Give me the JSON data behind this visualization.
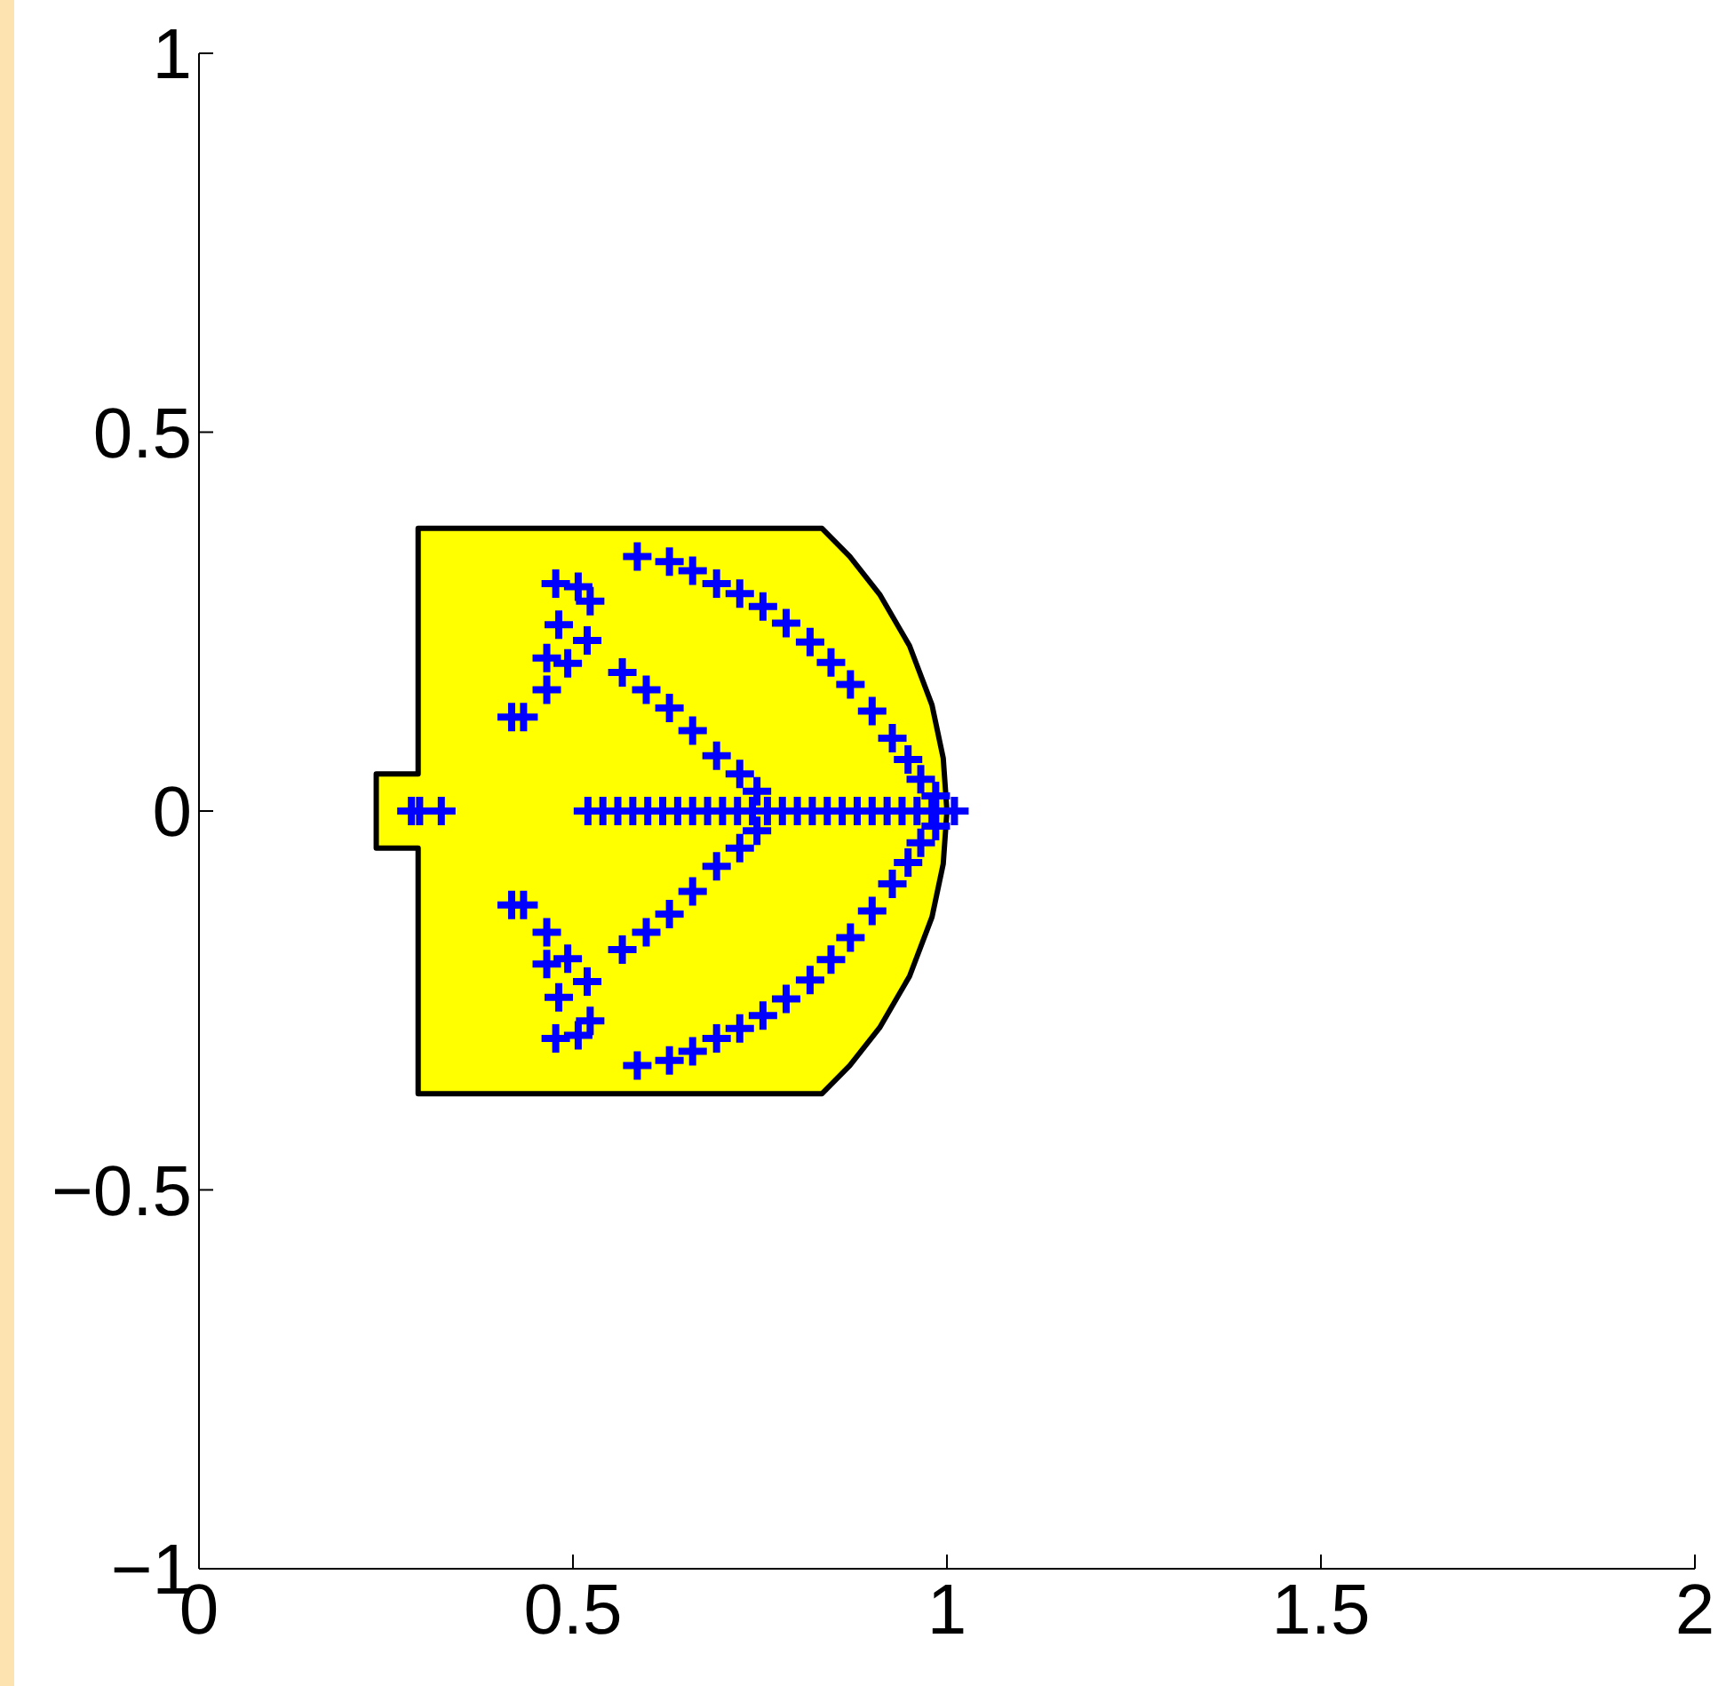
{
  "chart_data": {
    "type": "scatter",
    "xlim": [
      0,
      2
    ],
    "xticks": [
      0,
      0.5,
      1,
      1.5,
      2
    ],
    "ylim": [
      -1,
      1
    ],
    "yticks": [
      {
        "value": -1,
        "label": "−1"
      },
      {
        "value": -0.5,
        "label": "−0.5"
      },
      0,
      0.5,
      1
    ],
    "grid": false,
    "series": [
      {
        "type": "area",
        "color": "#ffff00",
        "x": [
          0.237,
          0.237,
          0.293,
          0.293,
          0.833,
          0.87,
          0.91,
          0.95,
          0.98,
          0.995,
          1.0
        ],
        "values": [
          0,
          0.049,
          0.049,
          0.373,
          0.373,
          0.336,
          0.286,
          0.218,
          0.14,
          0.07,
          0
        ]
      },
      {
        "type": "area",
        "color": "#ffff00",
        "x": [
          0.237,
          0.237,
          0.293,
          0.293,
          0.833,
          0.87,
          0.91,
          0.95,
          0.98,
          0.995,
          1.0
        ],
        "values": [
          0,
          -0.049,
          -0.049,
          -0.373,
          -0.373,
          -0.336,
          -0.286,
          -0.218,
          -0.14,
          -0.07,
          0
        ]
      },
      {
        "type": "scatter",
        "color": "#0000ff",
        "marker": "cross",
        "x": [
          0.586,
          0.629,
          0.66,
          0.692,
          0.723,
          0.754,
          0.785,
          0.817,
          0.845,
          0.871,
          0.9,
          0.927,
          0.948,
          0.965,
          0.985,
          1.01,
          0.586,
          0.629,
          0.66,
          0.692,
          0.723,
          0.754,
          0.785,
          0.817,
          0.845,
          0.871,
          0.9,
          0.927,
          0.948,
          0.965,
          0.985,
          0.477,
          0.507,
          0.523,
          0.481,
          0.519,
          0.465,
          0.493,
          0.465,
          0.418,
          0.434,
          0.566,
          0.598,
          0.629,
          0.66,
          0.692,
          0.723,
          0.746,
          0.477,
          0.507,
          0.523,
          0.481,
          0.519,
          0.465,
          0.493,
          0.465,
          0.418,
          0.434,
          0.566,
          0.598,
          0.629,
          0.66,
          0.692,
          0.723,
          0.746,
          0.284,
          0.295,
          0.324,
          0.52,
          0.54,
          0.56,
          0.58,
          0.6,
          0.62,
          0.64,
          0.66,
          0.68,
          0.7,
          0.72,
          0.74,
          0.76,
          0.78,
          0.8,
          0.82,
          0.84,
          0.86,
          0.88,
          0.9,
          0.92,
          0.94,
          0.96,
          0.98
        ],
        "values": [
          0.336,
          0.329,
          0.317,
          0.3,
          0.287,
          0.27,
          0.248,
          0.223,
          0.196,
          0.167,
          0.132,
          0.096,
          0.068,
          0.042,
          0.02,
          0,
          -0.336,
          -0.329,
          -0.317,
          -0.3,
          -0.287,
          -0.27,
          -0.248,
          -0.223,
          -0.196,
          -0.167,
          -0.132,
          -0.096,
          -0.068,
          -0.042,
          -0.02,
          0.3,
          0.296,
          0.277,
          0.246,
          0.225,
          0.202,
          0.195,
          0.16,
          0.124,
          0.124,
          0.183,
          0.16,
          0.136,
          0.106,
          0.073,
          0.049,
          0.026,
          -0.3,
          -0.296,
          -0.277,
          -0.246,
          -0.225,
          -0.202,
          -0.195,
          -0.16,
          -0.124,
          -0.124,
          -0.183,
          -0.16,
          -0.136,
          -0.106,
          -0.073,
          -0.049,
          -0.026,
          0,
          0,
          0,
          0,
          0,
          0,
          0,
          0,
          0,
          0,
          0,
          0,
          0,
          0,
          0,
          0,
          0,
          0,
          0,
          0,
          0,
          0,
          0,
          0,
          0,
          0,
          0
        ]
      }
    ]
  }
}
